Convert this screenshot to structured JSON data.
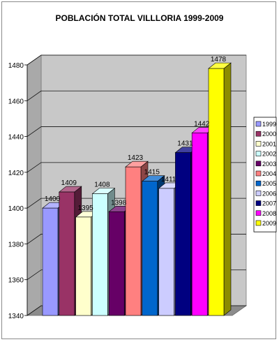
{
  "chart_data": {
    "type": "bar",
    "title": "POBLACIÓN TOTAL VILLLORIA 1999-2009",
    "categories": [
      "1999",
      "2000",
      "2001",
      "2002",
      "2003",
      "2004",
      "2005",
      "2006",
      "2007",
      "2008",
      "2009"
    ],
    "values": [
      1400,
      1409,
      1395,
      1408,
      1398,
      1423,
      1415,
      1411,
      1431,
      1442,
      1478
    ],
    "data_labels": [
      "1400",
      "1409",
      "1395",
      "1408",
      "1398",
      "1423",
      "1415",
      "1411",
      "1431",
      "1442",
      "1478"
    ],
    "colors": [
      "#9999ff",
      "#993366",
      "#ffffcc",
      "#ccffff",
      "#660066",
      "#ff8080",
      "#0066cc",
      "#ccccff",
      "#000080",
      "#ff00ff",
      "#ffff00"
    ],
    "ylim": [
      1340,
      1480
    ],
    "yticks": [
      "1340",
      "1360",
      "1380",
      "1400",
      "1420",
      "1440",
      "1460",
      "1480"
    ],
    "grid": true,
    "three_d": true,
    "legend_position": "right",
    "xlabel": "",
    "ylabel": ""
  }
}
